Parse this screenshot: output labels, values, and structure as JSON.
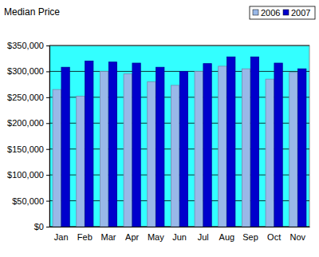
{
  "chart_data": {
    "type": "bar",
    "title": "Median Price",
    "categories": [
      "Jan",
      "Feb",
      "Mar",
      "Apr",
      "May",
      "Jun",
      "Jul",
      "Aug",
      "Sep",
      "Oct",
      "Nov"
    ],
    "series": [
      {
        "name": "2006",
        "color": "#99b8e8",
        "values": [
          265000,
          252000,
          300000,
          295000,
          280000,
          273000,
          300000,
          310000,
          305000,
          285000,
          298000
        ]
      },
      {
        "name": "2007",
        "color": "#0000cc",
        "values": [
          308000,
          320000,
          318000,
          316000,
          308000,
          300000,
          315000,
          328000,
          328000,
          316000,
          305000
        ]
      }
    ],
    "ylim": [
      0,
      350000
    ],
    "yticks": [
      {
        "value": 0,
        "label": "$0"
      },
      {
        "value": 50000,
        "label": "$50,000"
      },
      {
        "value": 100000,
        "label": "$100,000"
      },
      {
        "value": 150000,
        "label": "$150,000"
      },
      {
        "value": 200000,
        "label": "$200,000"
      },
      {
        "value": 250000,
        "label": "$250,000"
      },
      {
        "value": 300000,
        "label": "$300,000"
      },
      {
        "value": 350000,
        "label": "$350,000"
      }
    ],
    "grid": true,
    "legend": "top-right"
  }
}
